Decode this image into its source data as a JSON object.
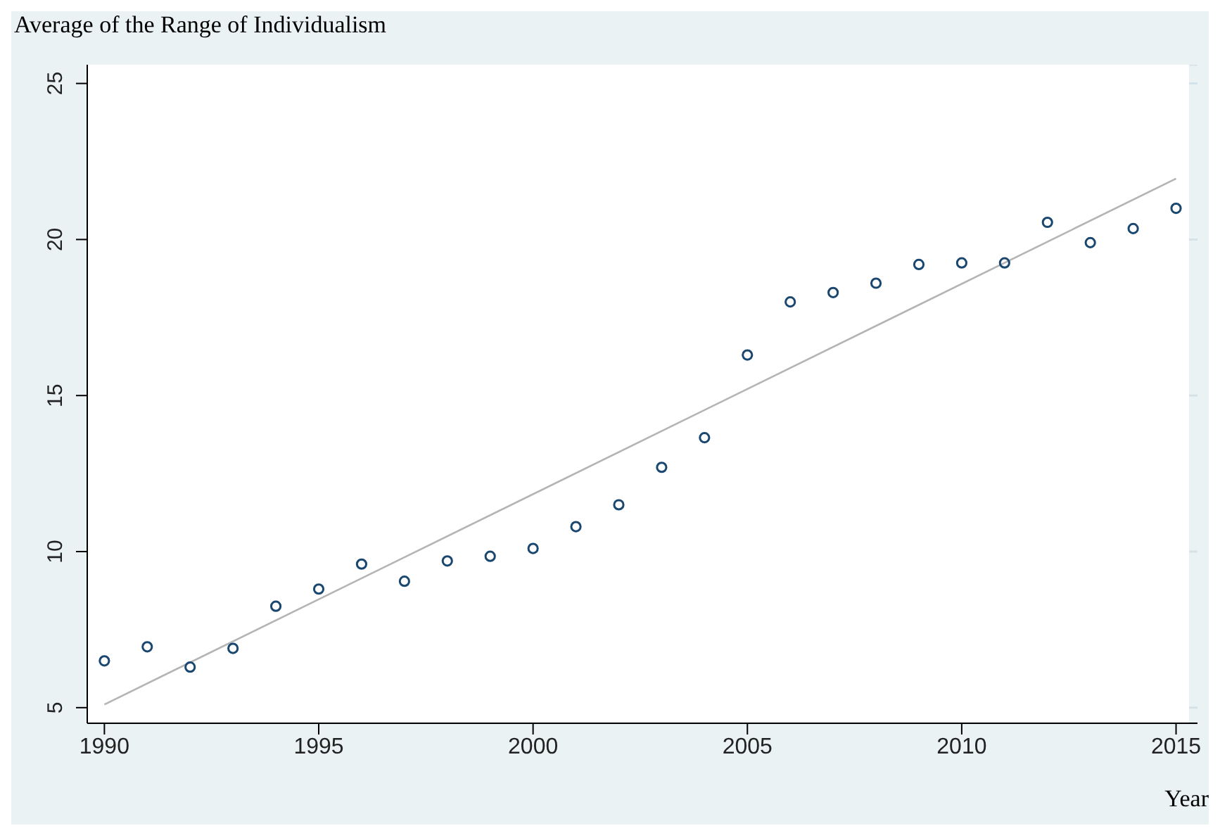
{
  "chart_data": {
    "type": "scatter",
    "title": "Average of the Range of Individualism",
    "xlabel": "Year",
    "x": [
      1990,
      1991,
      1992,
      1993,
      1994,
      1995,
      1996,
      1997,
      1998,
      1999,
      2000,
      2001,
      2002,
      2003,
      2004,
      2005,
      2006,
      2007,
      2008,
      2009,
      2010,
      2011,
      2012,
      2013,
      2014,
      2015
    ],
    "series": [
      {
        "color": "#1a476f",
        "marker": "circle",
        "values": [
          6.5,
          6.95,
          6.3,
          6.9,
          8.25,
          8.8,
          9.6,
          9.05,
          9.7,
          9.85,
          10.1,
          10.8,
          11.5,
          12.7,
          13.65,
          16.3,
          18.0,
          18.3,
          18.6,
          19.2,
          19.25,
          19.25,
          20.55,
          19.9,
          20.35,
          21.0
        ]
      },
      {
        "type": "line",
        "color": "#b4b4b4",
        "marker": "none",
        "x": [
          1990,
          2015
        ],
        "values": [
          5.1,
          21.95
        ]
      }
    ],
    "xlim": [
      1989.6,
      2015.5
    ],
    "xticks": [
      1990,
      1995,
      2000,
      2005,
      2010,
      2015
    ],
    "ylim": [
      4.5,
      25.6
    ],
    "yticks": [
      5,
      10,
      15,
      20,
      25
    ],
    "grid": "y",
    "legend": false
  }
}
